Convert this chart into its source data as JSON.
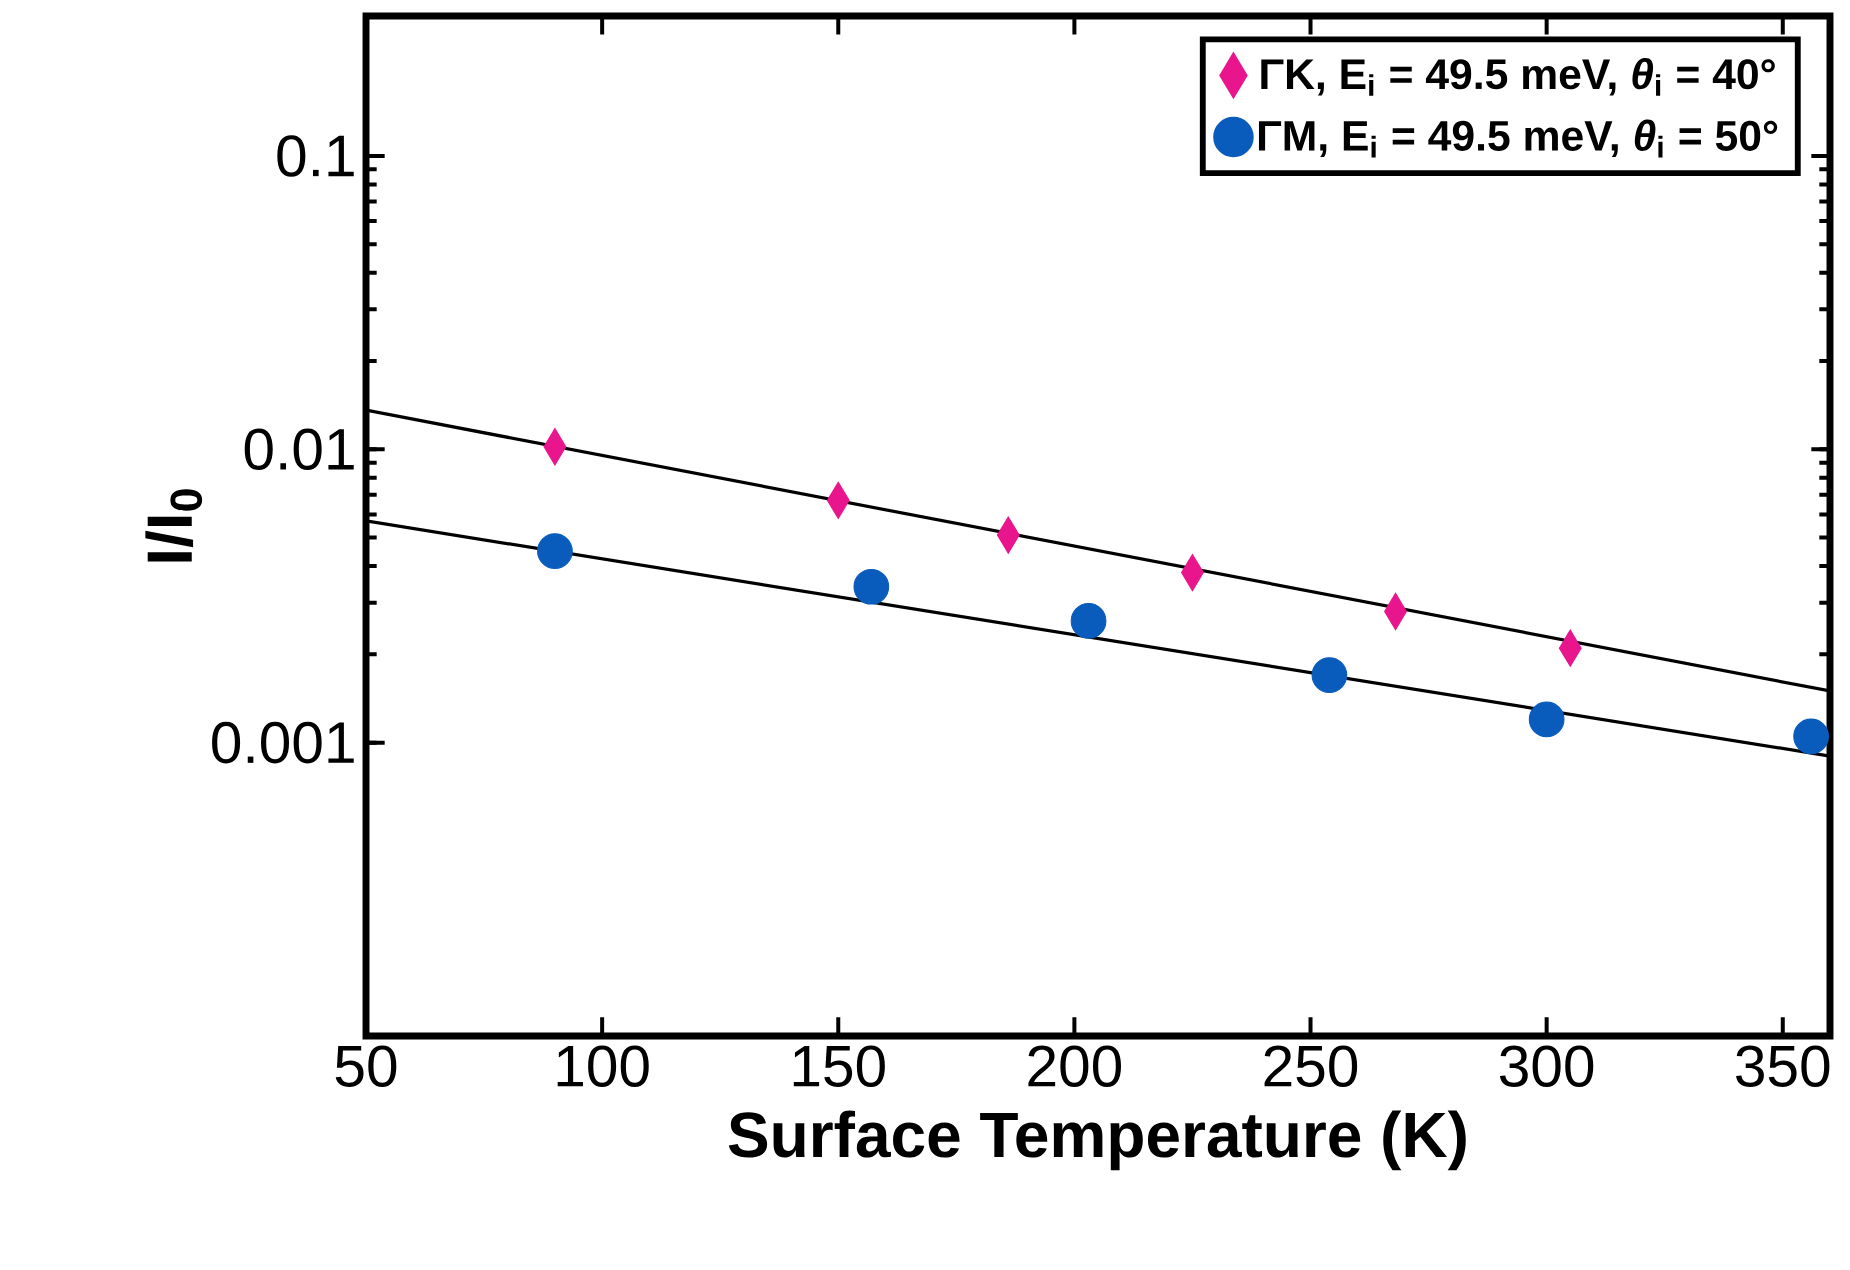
{
  "chart_data": {
    "type": "scatter",
    "xlabel": "Surface Temperature (K)",
    "ylabel": "I/I$_{0}$",
    "xlim": [
      50,
      360
    ],
    "ylim": [
      0.0001,
      0.3
    ],
    "log": "y",
    "xticks": [
      50,
      100,
      150,
      200,
      250,
      300,
      350
    ],
    "yticks": [
      0.001,
      0.01,
      0.1
    ],
    "grid": false,
    "legend": "top right",
    "series": [
      {
        "name": "ΓK, E$_{i}$ = 49.5 meV, *θ*$_{i}$ = 40°",
        "color": "#e8158c",
        "marker": "diamond",
        "x": [
          90,
          150,
          186,
          225,
          268,
          305
        ],
        "values": [
          0.0102,
          0.0067,
          0.0051,
          0.0038,
          0.0028,
          0.0021
        ]
      },
      {
        "name": "ΓM, E$_{i}$ = 49.5 meV, *θ*$_{i}$ = 50°",
        "color": "#0a5cbc",
        "marker": "circle",
        "x": [
          90,
          157,
          203,
          254,
          300,
          356
        ],
        "values": [
          0.0045,
          0.0034,
          0.0026,
          0.0017,
          0.0012,
          0.00105
        ]
      },
      {
        "type": "line",
        "color": "#000000",
        "marker": "none",
        "x": [
          50,
          360
        ],
        "values": [
          0.0136,
          0.0015
        ]
      },
      {
        "type": "line",
        "color": "#000000",
        "marker": "none",
        "x": [
          50,
          360
        ],
        "values": [
          0.0057,
          0.0009
        ]
      }
    ]
  }
}
